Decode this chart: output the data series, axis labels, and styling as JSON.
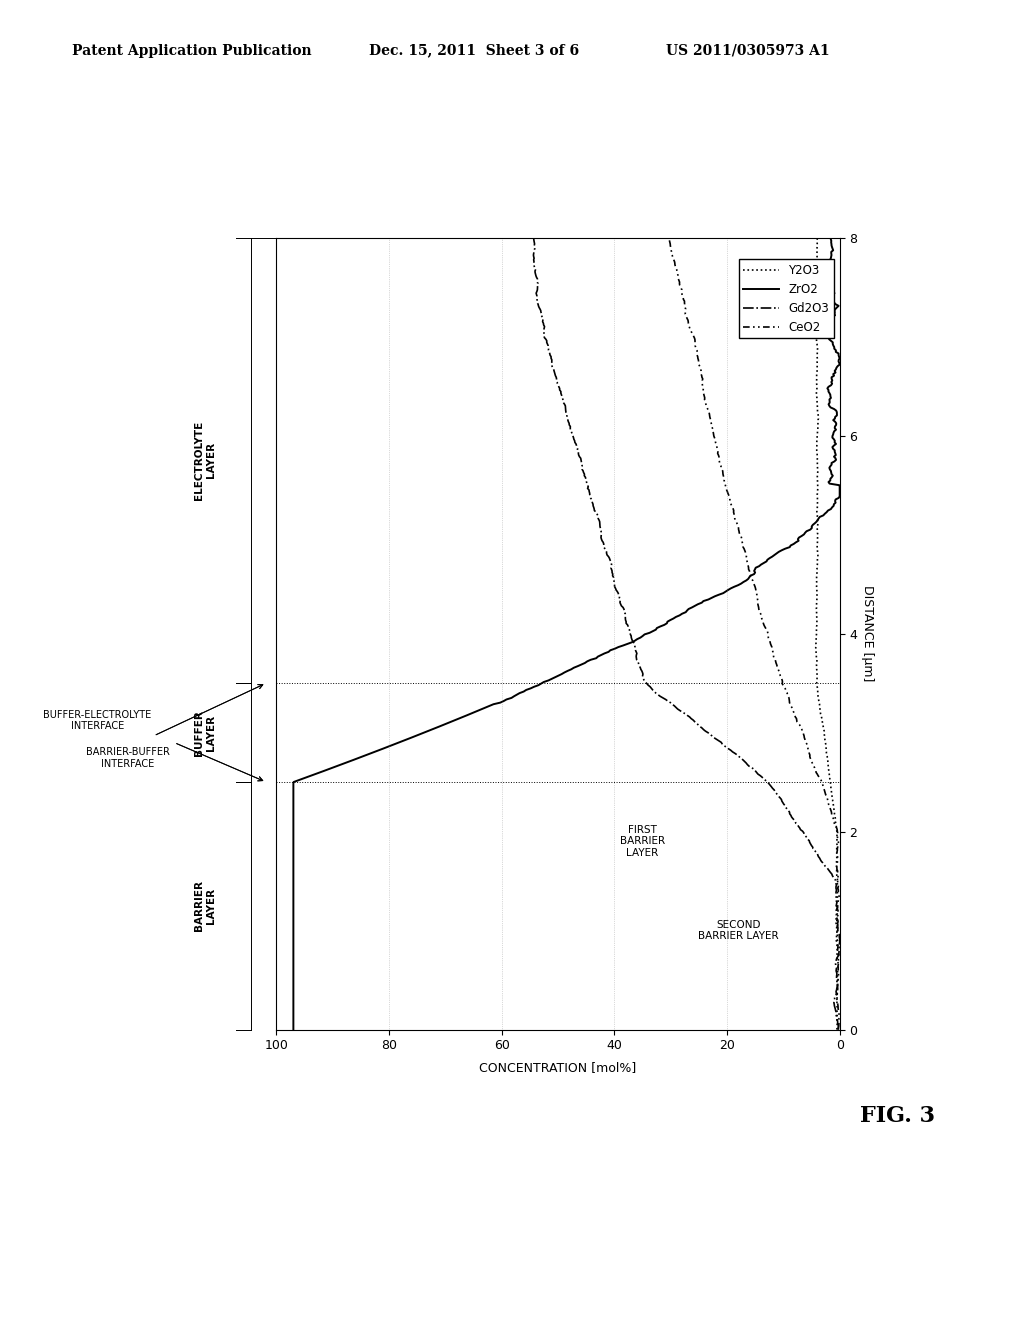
{
  "header_left": "Patent Application Publication",
  "header_mid": "Dec. 15, 2011  Sheet 3 of 6",
  "header_right": "US 2011/0305973 A1",
  "fig_label": "FIG. 3",
  "x_axis_label": "CONCENTRATION [mol%]",
  "y_axis_label": "DISTANCE [μm]",
  "xlim": [
    100,
    0
  ],
  "ylim": [
    0,
    8
  ],
  "xticks": [
    100,
    80,
    60,
    40,
    20,
    0
  ],
  "yticks": [
    0,
    2,
    4,
    6,
    8
  ],
  "legend_labels": [
    "Y2O3",
    "ZrO2",
    "Gd2O3",
    "CeO2"
  ],
  "barrier_end": 2.5,
  "buffer_end": 3.5,
  "background_color": "#ffffff",
  "fig_width": 10.24,
  "fig_height": 13.2
}
